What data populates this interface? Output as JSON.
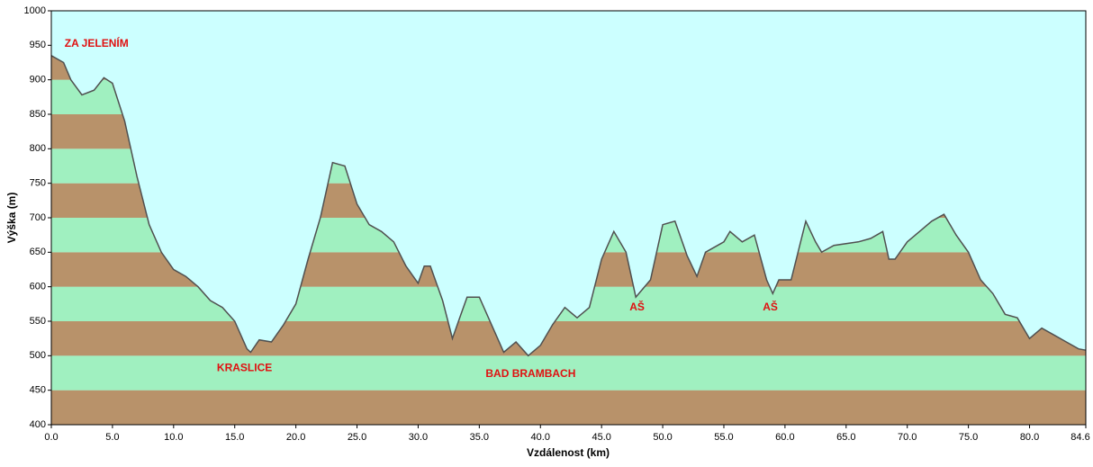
{
  "chart_data": {
    "type": "area",
    "x_label": "Vzdálenost   (km)",
    "y_label": "Výška (m)",
    "background": "#ccffff",
    "line_color": "#505050",
    "band_colors": [
      "#b8926a",
      "#a0f0c0"
    ],
    "x": [
      0,
      1,
      1.6,
      2.5,
      3.5,
      4.3,
      5,
      6,
      7,
      8,
      9,
      10,
      11,
      12,
      13,
      14,
      15,
      16,
      16.3,
      17,
      18,
      19,
      20,
      21,
      22,
      23,
      24,
      25,
      26,
      27,
      28,
      29,
      30,
      30.5,
      31,
      32,
      32.8,
      33.5,
      34,
      35,
      36,
      37,
      38,
      39,
      40,
      41,
      42,
      43,
      44,
      45,
      46,
      47,
      47.8,
      49,
      50,
      51,
      52,
      52.8,
      53.5,
      55,
      55.5,
      56.5,
      57.5,
      58.5,
      59,
      59.5,
      60.5,
      61.7,
      62.5,
      63,
      64,
      66,
      67,
      68,
      68.5,
      69,
      70,
      71,
      72,
      73,
      74,
      75,
      76,
      77,
      78,
      79,
      80,
      81,
      82,
      83,
      84,
      84.6
    ],
    "values": [
      935,
      925,
      900,
      878,
      885,
      903,
      895,
      840,
      760,
      690,
      650,
      625,
      615,
      600,
      580,
      570,
      550,
      510,
      505,
      523,
      520,
      545,
      575,
      640,
      700,
      780,
      775,
      720,
      690,
      680,
      665,
      630,
      605,
      630,
      630,
      580,
      525,
      560,
      585,
      585,
      545,
      505,
      520,
      500,
      515,
      545,
      570,
      555,
      570,
      640,
      680,
      650,
      585,
      610,
      690,
      695,
      645,
      615,
      650,
      665,
      680,
      665,
      675,
      610,
      590,
      610,
      610,
      695,
      665,
      650,
      660,
      665,
      670,
      680,
      640,
      640,
      665,
      680,
      695,
      705,
      675,
      650,
      610,
      590,
      560,
      555,
      525,
      540,
      530,
      520,
      510,
      508
    ],
    "xlim": [
      0,
      84.6
    ],
    "ylim": [
      400,
      1000
    ],
    "xticks": [
      {
        "value": 0,
        "label": "0.0"
      },
      {
        "value": 5,
        "label": "5.0"
      },
      {
        "value": 10,
        "label": "10.0"
      },
      {
        "value": 15,
        "label": "15.0"
      },
      {
        "value": 20,
        "label": "20.0"
      },
      {
        "value": 25,
        "label": "25.0"
      },
      {
        "value": 30,
        "label": "30.0"
      },
      {
        "value": 35,
        "label": "35.0"
      },
      {
        "value": 40,
        "label": "40.0"
      },
      {
        "value": 45,
        "label": "45.0"
      },
      {
        "value": 50,
        "label": "50.0"
      },
      {
        "value": 55,
        "label": "55.0"
      },
      {
        "value": 60,
        "label": "60.0"
      },
      {
        "value": 65,
        "label": "65.0"
      },
      {
        "value": 70,
        "label": "70.0"
      },
      {
        "value": 75,
        "label": "75.0"
      },
      {
        "value": 80,
        "label": "80.0"
      },
      84.6
    ],
    "yticks": [
      400,
      450,
      500,
      550,
      600,
      650,
      700,
      750,
      800,
      850,
      900,
      950,
      1000
    ],
    "annotations": [
      {
        "text": "ZA JELENÍM",
        "x": 3.7,
        "y": 952
      },
      {
        "text": "KRASLICE",
        "x": 15.8,
        "y": 482
      },
      {
        "text": "BAD BRAMBACH",
        "x": 39.2,
        "y": 473
      },
      {
        "text": "AŠ",
        "x": 47.9,
        "y": 570
      },
      {
        "text": "AŠ",
        "x": 58.8,
        "y": 570
      }
    ]
  }
}
